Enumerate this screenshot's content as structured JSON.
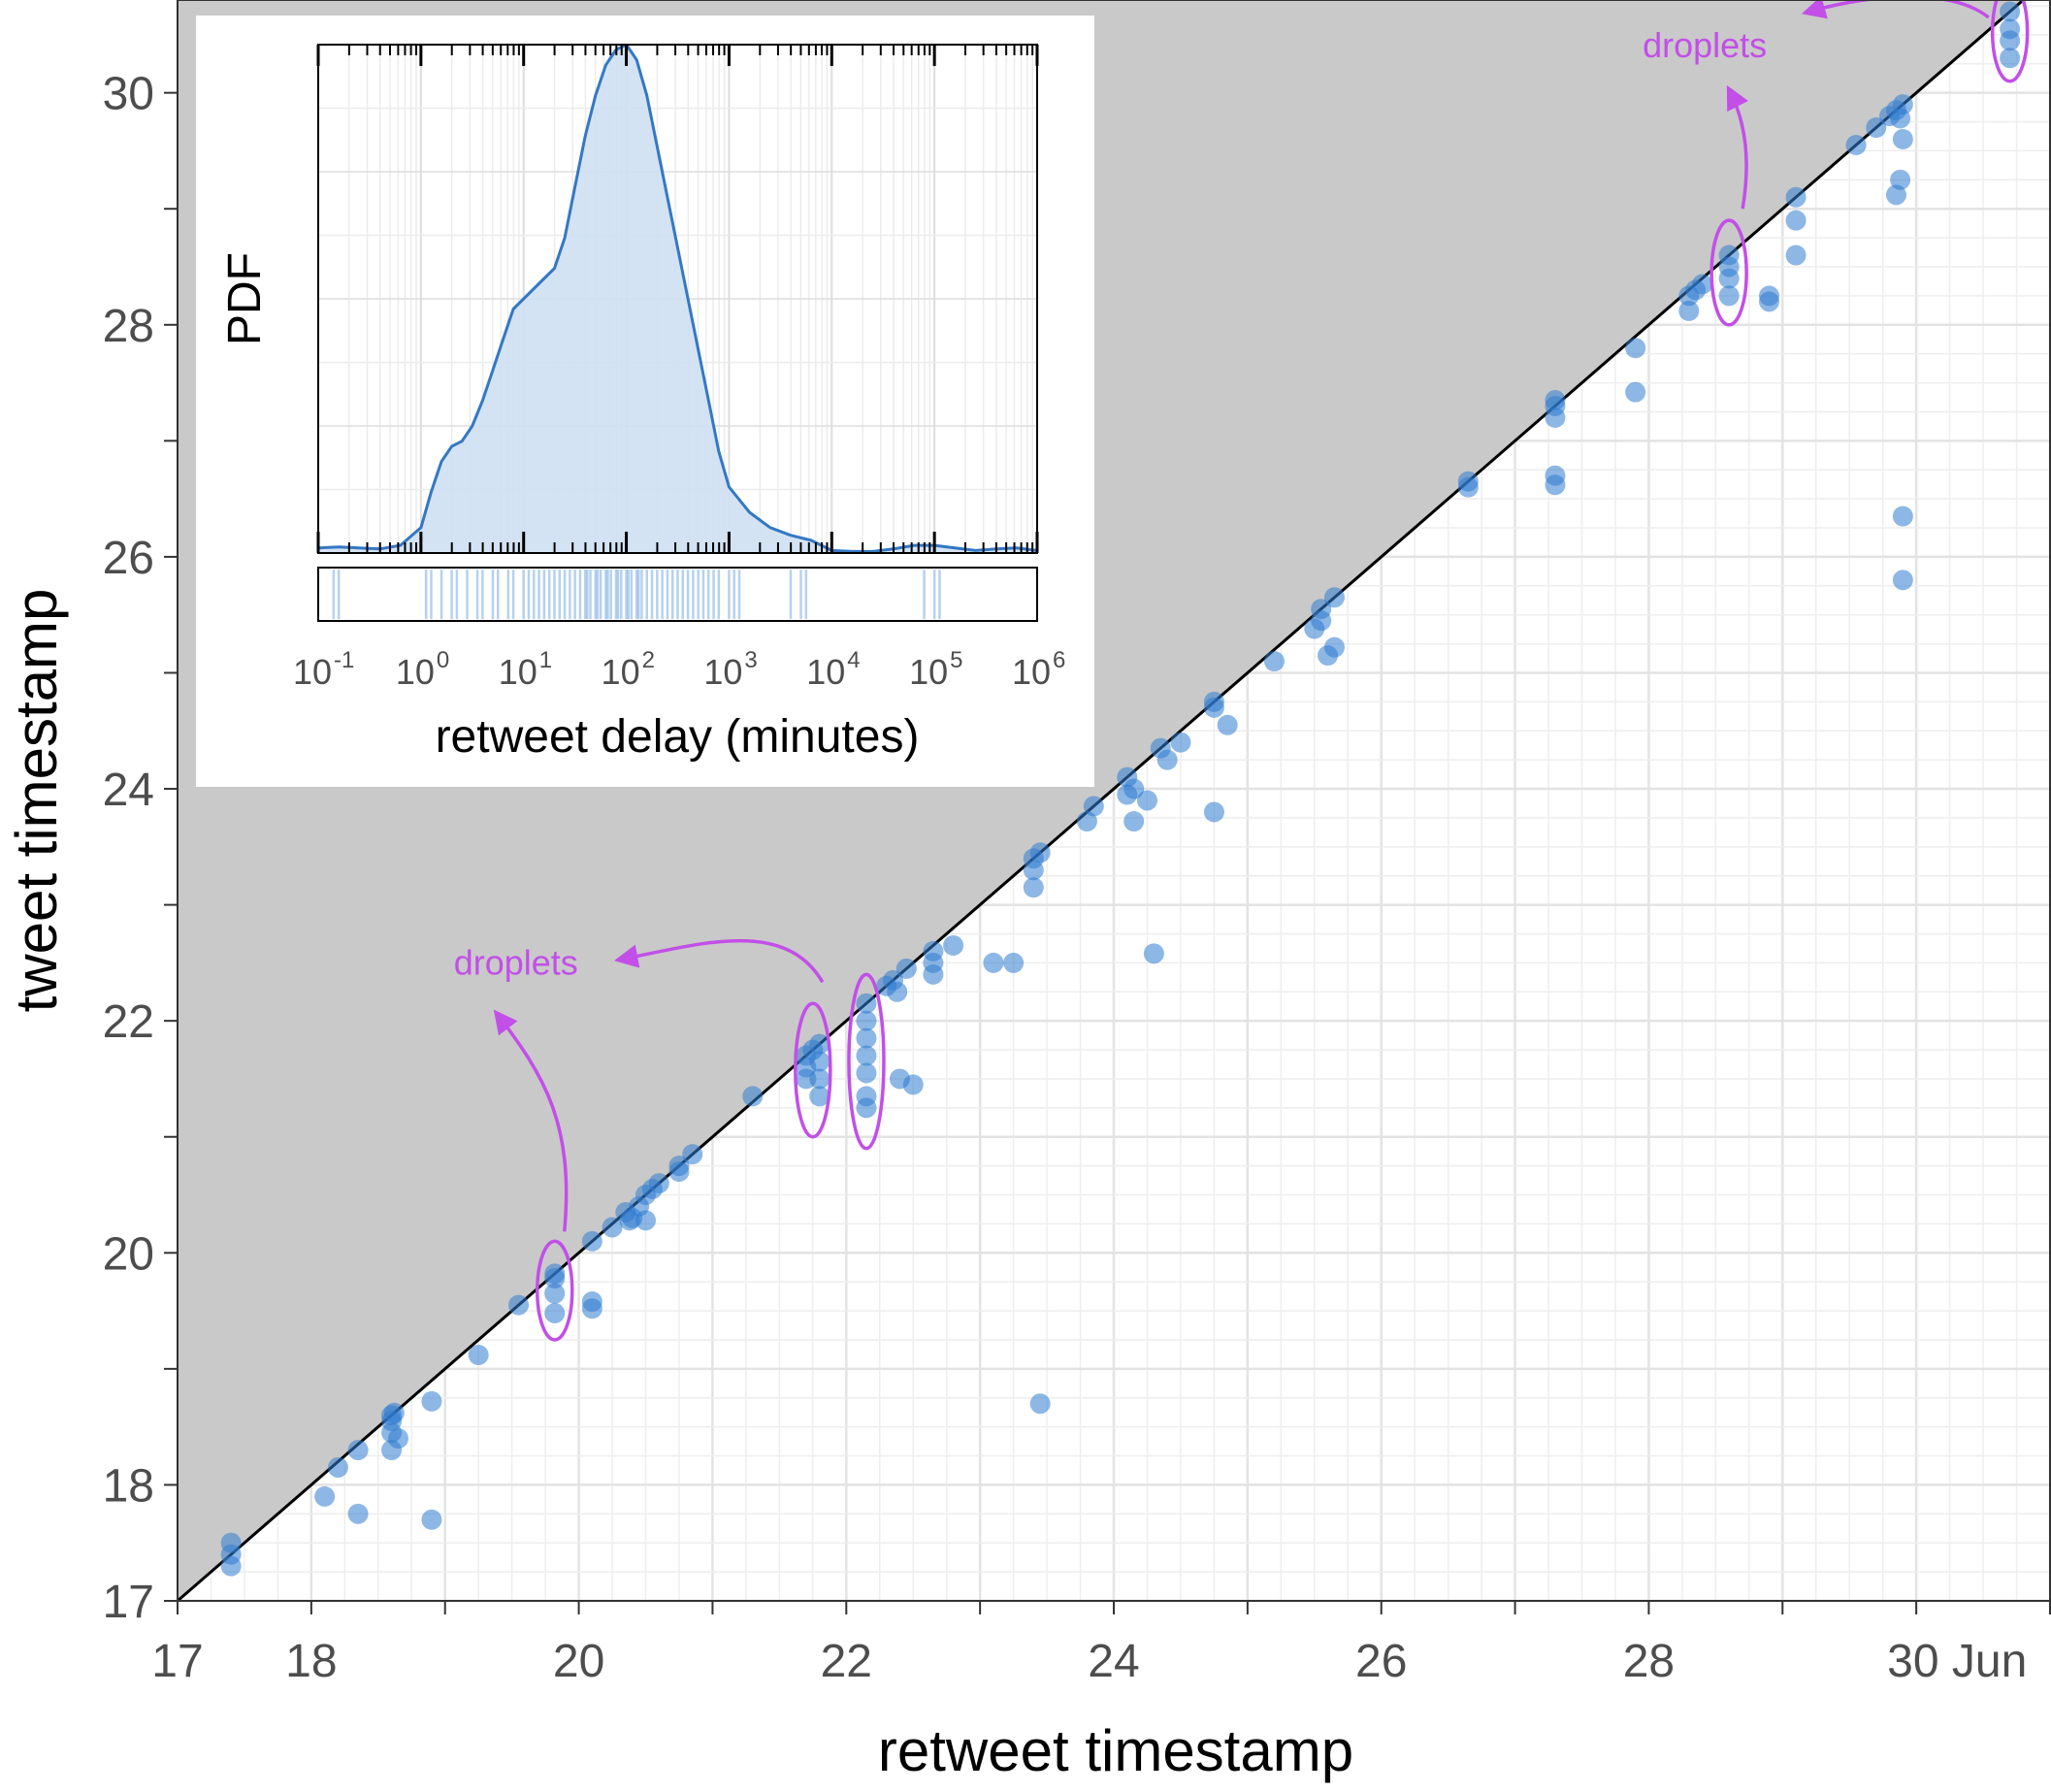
{
  "chart_data": {
    "type": "scatter",
    "xlabel": "retweet timestamp",
    "ylabel": "tweet timestamp",
    "xlim": [
      17,
      31
    ],
    "ylim": [
      17,
      30.8
    ],
    "x_ticks": [
      {
        "value": 17,
        "label": "17"
      },
      {
        "value": 18,
        "label": "18"
      },
      {
        "value": 20,
        "label": "20"
      },
      {
        "value": 22,
        "label": "22"
      },
      {
        "value": 24,
        "label": "24"
      },
      {
        "value": 26,
        "label": "26"
      },
      {
        "value": 28,
        "label": "28"
      },
      {
        "value": 30,
        "label": "30 Jun"
      }
    ],
    "y_ticks": [
      {
        "value": 17,
        "label": "17"
      },
      {
        "value": 18,
        "label": "18"
      },
      {
        "value": 20,
        "label": "20"
      },
      {
        "value": 22,
        "label": "22"
      },
      {
        "value": 24,
        "label": "24"
      },
      {
        "value": 26,
        "label": "26"
      },
      {
        "value": 28,
        "label": "28"
      },
      {
        "value": 30,
        "label": "30"
      }
    ],
    "reference_line": "y = x",
    "shaded_region": "above y = x",
    "point_color": "#2f7bd0",
    "points": [
      [
        17.4,
        17.3
      ],
      [
        17.4,
        17.4
      ],
      [
        17.4,
        17.5
      ],
      [
        18.1,
        17.9
      ],
      [
        18.2,
        18.15
      ],
      [
        18.35,
        18.3
      ],
      [
        18.35,
        17.75
      ],
      [
        18.6,
        18.3
      ],
      [
        18.6,
        18.45
      ],
      [
        18.6,
        18.55
      ],
      [
        18.6,
        18.6
      ],
      [
        18.62,
        18.62
      ],
      [
        18.65,
        18.4
      ],
      [
        18.9,
        18.72
      ],
      [
        18.9,
        17.7
      ],
      [
        19.25,
        19.12
      ],
      [
        19.55,
        19.55
      ],
      [
        19.82,
        19.82
      ],
      [
        19.82,
        19.78
      ],
      [
        19.82,
        19.65
      ],
      [
        19.82,
        19.48
      ],
      [
        20.1,
        20.1
      ],
      [
        20.1,
        19.58
      ],
      [
        20.1,
        19.52
      ],
      [
        20.25,
        20.22
      ],
      [
        20.35,
        20.35
      ],
      [
        20.38,
        20.28
      ],
      [
        20.4,
        20.3
      ],
      [
        20.45,
        20.4
      ],
      [
        20.5,
        20.5
      ],
      [
        20.5,
        20.28
      ],
      [
        20.55,
        20.55
      ],
      [
        20.6,
        20.6
      ],
      [
        20.75,
        20.7
      ],
      [
        20.75,
        20.75
      ],
      [
        20.85,
        20.85
      ],
      [
        21.3,
        21.35
      ],
      [
        21.7,
        21.7
      ],
      [
        21.7,
        21.6
      ],
      [
        21.7,
        21.5
      ],
      [
        21.75,
        21.75
      ],
      [
        21.8,
        21.8
      ],
      [
        21.8,
        21.65
      ],
      [
        21.8,
        21.5
      ],
      [
        21.8,
        21.35
      ],
      [
        22.15,
        22.15
      ],
      [
        22.15,
        22.0
      ],
      [
        22.15,
        21.85
      ],
      [
        22.15,
        21.7
      ],
      [
        22.15,
        21.55
      ],
      [
        22.15,
        21.35
      ],
      [
        22.15,
        21.25
      ],
      [
        22.3,
        22.3
      ],
      [
        22.35,
        22.35
      ],
      [
        22.38,
        22.25
      ],
      [
        22.45,
        22.45
      ],
      [
        22.4,
        21.5
      ],
      [
        22.5,
        21.45
      ],
      [
        22.65,
        22.6
      ],
      [
        22.65,
        22.5
      ],
      [
        22.65,
        22.4
      ],
      [
        22.8,
        22.65
      ],
      [
        23.1,
        22.5
      ],
      [
        23.25,
        22.5
      ],
      [
        23.4,
        23.4
      ],
      [
        23.4,
        23.3
      ],
      [
        23.4,
        23.15
      ],
      [
        23.45,
        23.45
      ],
      [
        23.45,
        18.7
      ],
      [
        23.85,
        23.85
      ],
      [
        23.8,
        23.72
      ],
      [
        24.1,
        24.1
      ],
      [
        24.1,
        23.95
      ],
      [
        24.15,
        24.0
      ],
      [
        24.15,
        23.72
      ],
      [
        24.25,
        23.9
      ],
      [
        24.3,
        22.58
      ],
      [
        24.35,
        24.35
      ],
      [
        24.4,
        24.25
      ],
      [
        24.5,
        24.4
      ],
      [
        24.75,
        24.75
      ],
      [
        24.75,
        24.7
      ],
      [
        24.75,
        23.8
      ],
      [
        24.85,
        24.55
      ],
      [
        25.2,
        25.1
      ],
      [
        25.55,
        25.55
      ],
      [
        25.55,
        25.45
      ],
      [
        25.65,
        25.65
      ],
      [
        25.6,
        25.15
      ],
      [
        25.65,
        25.22
      ],
      [
        25.5,
        25.38
      ],
      [
        26.65,
        26.65
      ],
      [
        26.65,
        26.6
      ],
      [
        27.3,
        27.3
      ],
      [
        27.3,
        27.35
      ],
      [
        27.3,
        27.2
      ],
      [
        27.3,
        26.7
      ],
      [
        27.3,
        26.62
      ],
      [
        27.9,
        27.8
      ],
      [
        27.9,
        27.42
      ],
      [
        28.3,
        28.25
      ],
      [
        28.3,
        28.12
      ],
      [
        28.35,
        28.3
      ],
      [
        28.4,
        28.35
      ],
      [
        28.6,
        28.6
      ],
      [
        28.6,
        28.5
      ],
      [
        28.6,
        28.4
      ],
      [
        28.6,
        28.25
      ],
      [
        28.9,
        28.25
      ],
      [
        28.9,
        28.2
      ],
      [
        29.1,
        29.1
      ],
      [
        29.1,
        28.9
      ],
      [
        29.1,
        28.6
      ],
      [
        29.55,
        29.55
      ],
      [
        29.7,
        29.7
      ],
      [
        29.8,
        29.8
      ],
      [
        29.85,
        29.85
      ],
      [
        29.88,
        29.78
      ],
      [
        29.9,
        29.9
      ],
      [
        29.9,
        29.6
      ],
      [
        29.88,
        29.25
      ],
      [
        29.85,
        29.12
      ],
      [
        29.9,
        26.35
      ],
      [
        29.9,
        25.8
      ],
      [
        30.7,
        30.7
      ],
      [
        30.7,
        30.55
      ],
      [
        30.7,
        30.45
      ],
      [
        30.7,
        30.3
      ]
    ],
    "annotations": [
      {
        "text": "droplets",
        "color": "#c24fe8"
      },
      {
        "text": "droplets",
        "color": "#c24fe8"
      }
    ],
    "droplet_groups": [
      {
        "x": 19.82,
        "y_range": [
          19.25,
          20.1
        ]
      },
      {
        "x": 21.75,
        "y_range": [
          21.0,
          22.15
        ]
      },
      {
        "x": 22.15,
        "y_range": [
          20.9,
          22.4
        ]
      },
      {
        "x": 28.6,
        "y_range": [
          28.0,
          28.9
        ]
      },
      {
        "x": 30.7,
        "y_range": [
          30.1,
          30.95
        ]
      }
    ],
    "inset": {
      "type": "area",
      "xlabel": "retweet delay (minutes)",
      "ylabel": "PDF",
      "x_scale": "log10",
      "xlim": [
        0.1,
        1000000
      ],
      "x_tick_base": "10",
      "x_tick_exponents": [
        "-1",
        "0",
        "1",
        "2",
        "3",
        "4",
        "5",
        "6"
      ],
      "fill_color": "#cfe0f2",
      "line_color": "#3478c4",
      "density": [
        [
          -1,
          0.01
        ],
        [
          -0.8,
          0.012
        ],
        [
          -0.6,
          0.01
        ],
        [
          -0.4,
          0.008
        ],
        [
          -0.2,
          0.015
        ],
        [
          0,
          0.05
        ],
        [
          0.1,
          0.12
        ],
        [
          0.2,
          0.18
        ],
        [
          0.3,
          0.21
        ],
        [
          0.4,
          0.22
        ],
        [
          0.5,
          0.25
        ],
        [
          0.6,
          0.3
        ],
        [
          0.7,
          0.36
        ],
        [
          0.8,
          0.42
        ],
        [
          0.9,
          0.48
        ],
        [
          1,
          0.5
        ],
        [
          1.1,
          0.52
        ],
        [
          1.2,
          0.54
        ],
        [
          1.3,
          0.56
        ],
        [
          1.4,
          0.62
        ],
        [
          1.5,
          0.72
        ],
        [
          1.6,
          0.82
        ],
        [
          1.7,
          0.9
        ],
        [
          1.8,
          0.96
        ],
        [
          1.9,
          0.99
        ],
        [
          2,
          1.0
        ],
        [
          2.1,
          0.97
        ],
        [
          2.2,
          0.9
        ],
        [
          2.3,
          0.8
        ],
        [
          2.4,
          0.7
        ],
        [
          2.5,
          0.6
        ],
        [
          2.6,
          0.5
        ],
        [
          2.7,
          0.4
        ],
        [
          2.8,
          0.3
        ],
        [
          2.9,
          0.2
        ],
        [
          3,
          0.13
        ],
        [
          3.2,
          0.08
        ],
        [
          3.4,
          0.05
        ],
        [
          3.6,
          0.035
        ],
        [
          3.8,
          0.025
        ],
        [
          4,
          0.005
        ],
        [
          4.2,
          0.003
        ],
        [
          4.4,
          0.003
        ],
        [
          4.6,
          0.008
        ],
        [
          4.8,
          0.015
        ],
        [
          5,
          0.015
        ],
        [
          5.2,
          0.01
        ],
        [
          5.4,
          0.005
        ],
        [
          5.6,
          0.008
        ],
        [
          5.8,
          0.01
        ],
        [
          6,
          0.005
        ]
      ],
      "rug_log10": [
        -0.85,
        -0.8,
        0.05,
        0.1,
        0.2,
        0.3,
        0.35,
        0.45,
        0.55,
        0.6,
        0.7,
        0.75,
        0.85,
        0.9,
        1.0,
        1.05,
        1.1,
        1.15,
        1.2,
        1.25,
        1.3,
        1.35,
        1.4,
        1.45,
        1.5,
        1.55,
        1.6,
        1.62,
        1.65,
        1.7,
        1.72,
        1.75,
        1.8,
        1.82,
        1.85,
        1.9,
        1.92,
        1.95,
        2.0,
        2.02,
        2.05,
        2.1,
        2.12,
        2.15,
        2.2,
        2.25,
        2.3,
        2.35,
        2.4,
        2.45,
        2.5,
        2.55,
        2.6,
        2.65,
        2.7,
        2.75,
        2.8,
        2.85,
        2.9,
        3.0,
        3.05,
        3.1,
        3.6,
        3.7,
        3.75,
        4.9,
        5.0,
        5.05
      ]
    }
  }
}
